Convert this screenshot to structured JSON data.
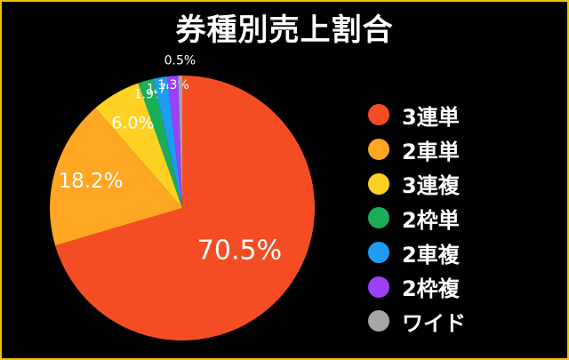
{
  "chart_data": {
    "type": "pie",
    "title": "券種別売上割合",
    "start_angle_deg": 0,
    "direction": "clockwise",
    "slices": [
      {
        "label": "3連単",
        "value": 70.5,
        "value_label": "70.5%",
        "color": "#f54d23"
      },
      {
        "label": "2車単",
        "value": 18.2,
        "value_label": "18.2%",
        "color": "#ffa622"
      },
      {
        "label": "3連複",
        "value": 6.0,
        "value_label": "6.0%",
        "color": "#ffd122"
      },
      {
        "label": "2枠単",
        "value": 1.9,
        "value_label": "1.9%",
        "color": "#1aad5a"
      },
      {
        "label": "2車複",
        "value": 1.7,
        "value_label": "1.7%",
        "color": "#1e9cf3"
      },
      {
        "label": "2枠複",
        "value": 1.3,
        "value_label": "1.3%",
        "color": "#9c41f7"
      },
      {
        "label": "ワイド",
        "value": 0.5,
        "value_label": "0.5%",
        "color": "#a6a6a6"
      }
    ],
    "legend_position": "right"
  }
}
